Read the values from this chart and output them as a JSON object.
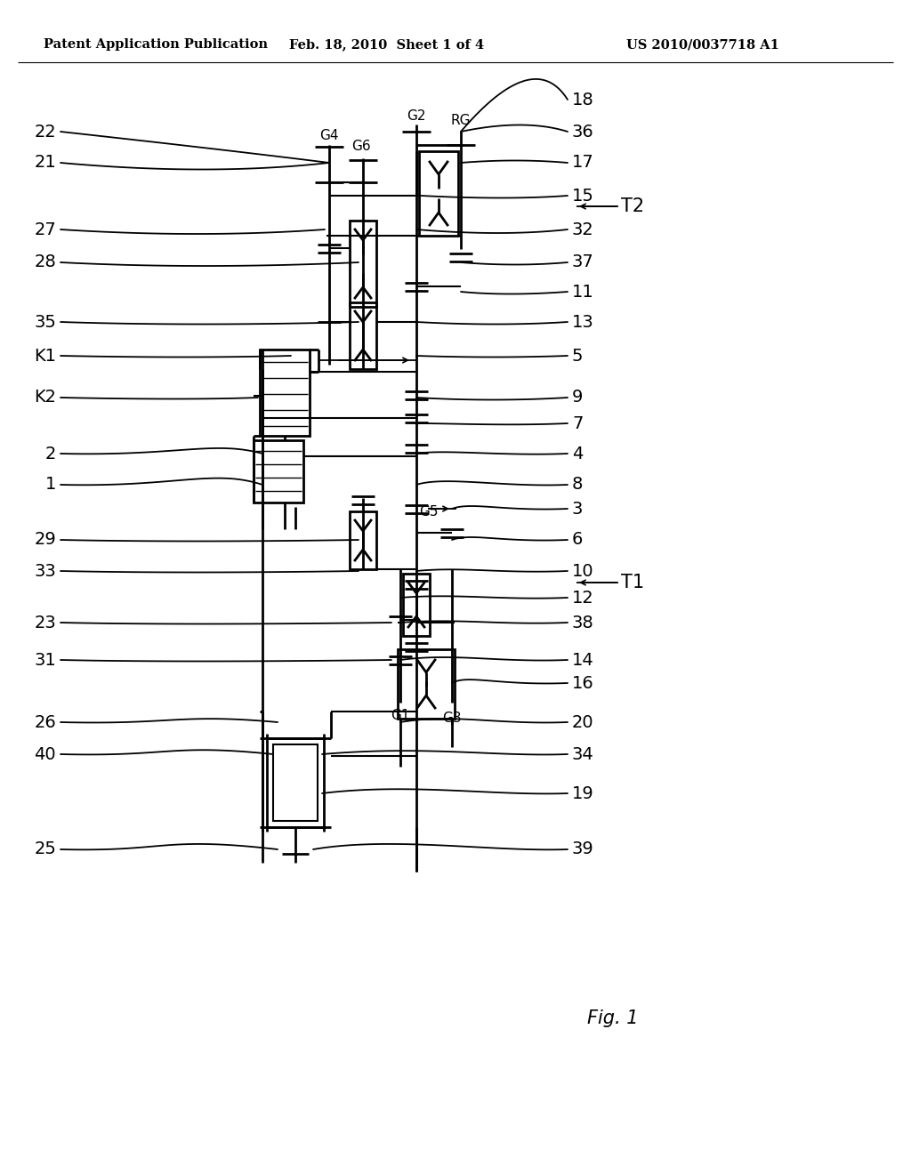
{
  "bg_color": "#ffffff",
  "header_left": "Patent Application Publication",
  "header_mid": "Feb. 18, 2010  Sheet 1 of 4",
  "header_right": "US 2010/0037718 A1",
  "footer": "Fig. 1"
}
